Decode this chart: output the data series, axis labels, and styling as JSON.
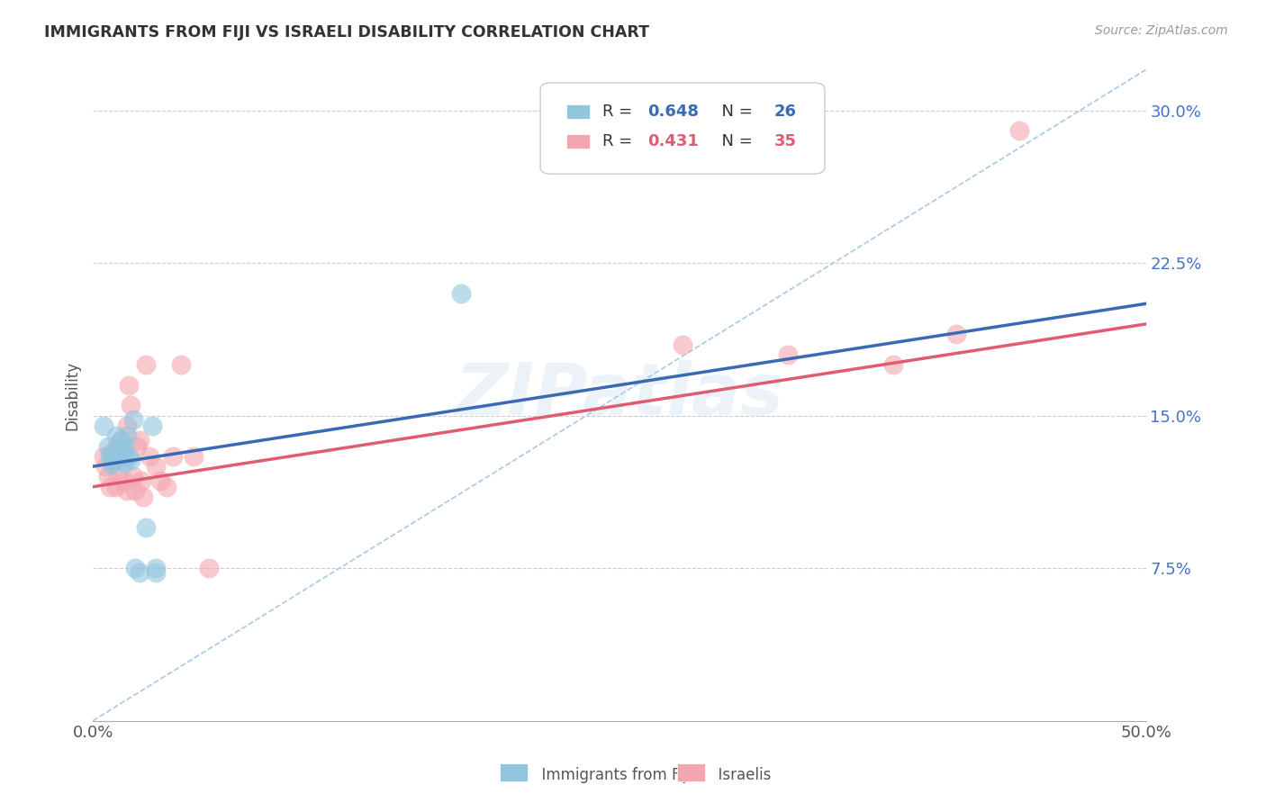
{
  "title": "IMMIGRANTS FROM FIJI VS ISRAELI DISABILITY CORRELATION CHART",
  "source": "Source: ZipAtlas.com",
  "ylabel": "Disability",
  "xlim": [
    0.0,
    0.5
  ],
  "ylim": [
    0.0,
    0.32
  ],
  "xtick_positions": [
    0.0,
    0.5
  ],
  "xtick_labels": [
    "0.0%",
    "50.0%"
  ],
  "yticks": [
    0.075,
    0.15,
    0.225,
    0.3
  ],
  "ytick_labels": [
    "7.5%",
    "15.0%",
    "22.5%",
    "30.0%"
  ],
  "fiji_R": 0.648,
  "fiji_N": 26,
  "israeli_R": 0.431,
  "israeli_N": 35,
  "fiji_color": "#92c5de",
  "israeli_color": "#f4a6b0",
  "fiji_line_color": "#3a6ab3",
  "israeli_line_color": "#e05c72",
  "trendline_dashed_color": "#a8c8e8",
  "watermark": "ZIPatlas",
  "fiji_x": [
    0.005,
    0.007,
    0.008,
    0.009,
    0.009,
    0.01,
    0.01,
    0.011,
    0.012,
    0.013,
    0.013,
    0.014,
    0.014,
    0.015,
    0.015,
    0.016,
    0.017,
    0.018,
    0.019,
    0.02,
    0.022,
    0.025,
    0.028,
    0.03,
    0.03,
    0.175
  ],
  "fiji_y": [
    0.145,
    0.135,
    0.13,
    0.128,
    0.126,
    0.132,
    0.128,
    0.14,
    0.135,
    0.13,
    0.138,
    0.13,
    0.128,
    0.135,
    0.127,
    0.14,
    0.13,
    0.128,
    0.148,
    0.075,
    0.073,
    0.095,
    0.145,
    0.075,
    0.073,
    0.21
  ],
  "israeli_x": [
    0.005,
    0.006,
    0.007,
    0.008,
    0.009,
    0.01,
    0.011,
    0.012,
    0.013,
    0.014,
    0.015,
    0.016,
    0.017,
    0.018,
    0.019,
    0.02,
    0.021,
    0.022,
    0.023,
    0.024,
    0.025,
    0.027,
    0.03,
    0.032,
    0.035,
    0.038,
    0.042,
    0.048,
    0.055,
    0.28,
    0.33,
    0.38,
    0.41,
    0.44,
    0.016
  ],
  "israeli_y": [
    0.13,
    0.125,
    0.12,
    0.115,
    0.132,
    0.128,
    0.115,
    0.12,
    0.138,
    0.133,
    0.118,
    0.113,
    0.165,
    0.155,
    0.12,
    0.113,
    0.135,
    0.138,
    0.118,
    0.11,
    0.175,
    0.13,
    0.125,
    0.118,
    0.115,
    0.13,
    0.175,
    0.13,
    0.075,
    0.185,
    0.18,
    0.175,
    0.19,
    0.29,
    0.145
  ],
  "fiji_line_x0": 0.0,
  "fiji_line_y0": 0.125,
  "fiji_line_x1": 0.5,
  "fiji_line_y1": 0.205,
  "israeli_line_x0": 0.0,
  "israeli_line_y0": 0.115,
  "israeli_line_x1": 0.5,
  "israeli_line_y1": 0.195,
  "background_color": "#ffffff",
  "grid_color": "#cccccc",
  "ytick_color": "#4472c4"
}
